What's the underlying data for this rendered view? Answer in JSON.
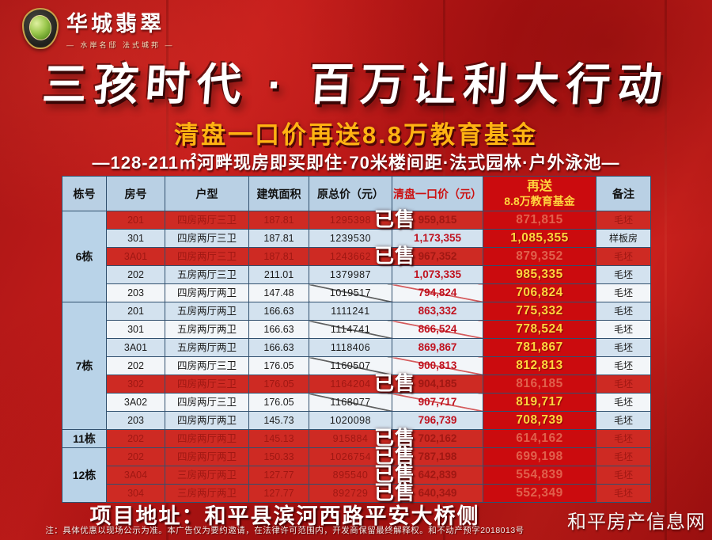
{
  "brand": {
    "name": "华城翡翠",
    "tagline": "— 水岸名邸  法式城邦 —"
  },
  "hero": {
    "title": "三孩时代 · 百万让利大行动",
    "subtitle": "清盘一口价再送8.8万教育基金",
    "features": "—128-211㎡河畔现房即买即住·70米楼间距·法式园林·户外泳池—"
  },
  "table": {
    "headers": [
      "栋号",
      "房号",
      "户型",
      "建筑面积",
      "原总价（元）",
      "清盘一口价（元）",
      "备注"
    ],
    "fund_header": {
      "line1": "再送",
      "line2": "8.8万教育基金"
    },
    "sold_label": "已售",
    "groups": [
      {
        "building": "6栋",
        "rows": [
          {
            "room": "201",
            "type": "四房两厅三卫",
            "area": "187.81",
            "original": "1295398",
            "clearance": "959,815",
            "fund": "871,815",
            "remark": "毛坯",
            "sold": true
          },
          {
            "room": "301",
            "type": "四房两厅三卫",
            "area": "187.81",
            "original": "1239530",
            "clearance": "1,173,355",
            "fund": "1,085,355",
            "remark": "样板房",
            "sold": false
          },
          {
            "room": "3A01",
            "type": "四房两厅三卫",
            "area": "187.81",
            "original": "1243662",
            "clearance": "967,352",
            "fund": "879,352",
            "remark": "毛坯",
            "sold": true
          },
          {
            "room": "202",
            "type": "五房两厅三卫",
            "area": "211.01",
            "original": "1379987",
            "clearance": "1,073,335",
            "fund": "985,335",
            "remark": "毛坯",
            "sold": false
          },
          {
            "room": "203",
            "type": "四房两厅两卫",
            "area": "147.48",
            "original": "1019517",
            "clearance": "794,824",
            "fund": "706,824",
            "remark": "毛坯",
            "sold": false
          }
        ]
      },
      {
        "building": "7栋",
        "rows": [
          {
            "room": "201",
            "type": "五房两厅两卫",
            "area": "166.63",
            "original": "1111241",
            "clearance": "863,332",
            "fund": "775,332",
            "remark": "毛坯",
            "sold": false
          },
          {
            "room": "301",
            "type": "五房两厅两卫",
            "area": "166.63",
            "original": "1114741",
            "clearance": "866,524",
            "fund": "778,524",
            "remark": "毛坯",
            "sold": false
          },
          {
            "room": "3A01",
            "type": "五房两厅两卫",
            "area": "166.63",
            "original": "1118406",
            "clearance": "869,867",
            "fund": "781,867",
            "remark": "毛坯",
            "sold": false
          },
          {
            "room": "202",
            "type": "四房两厅三卫",
            "area": "176.05",
            "original": "1160507",
            "clearance": "900,813",
            "fund": "812,813",
            "remark": "毛坯",
            "sold": false
          },
          {
            "room": "302",
            "type": "四房两厅三卫",
            "area": "176.05",
            "original": "1164204",
            "clearance": "904,185",
            "fund": "816,185",
            "remark": "毛坯",
            "sold": true
          },
          {
            "room": "3A02",
            "type": "四房两厅三卫",
            "area": "176.05",
            "original": "1168077",
            "clearance": "907,717",
            "fund": "819,717",
            "remark": "毛坯",
            "sold": false
          },
          {
            "room": "203",
            "type": "四房两厅两卫",
            "area": "145.73",
            "original": "1020098",
            "clearance": "796,739",
            "fund": "708,739",
            "remark": "毛坯",
            "sold": false
          }
        ]
      },
      {
        "building": "11栋",
        "rows": [
          {
            "room": "202",
            "type": "四房两厅两卫",
            "area": "145.13",
            "original": "915884",
            "clearance": "702,162",
            "fund": "614,162",
            "remark": "毛坯",
            "sold": true
          }
        ]
      },
      {
        "building": "12栋",
        "rows": [
          {
            "room": "202",
            "type": "四房两厅两卫",
            "area": "150.33",
            "original": "1026754",
            "clearance": "787,198",
            "fund": "699,198",
            "remark": "毛坯",
            "sold": true
          },
          {
            "room": "3A04",
            "type": "三房两厅两卫",
            "area": "127.77",
            "original": "895540",
            "clearance": "642,839",
            "fund": "554,839",
            "remark": "毛坯",
            "sold": true
          },
          {
            "room": "304",
            "type": "三房两厅两卫",
            "area": "127.77",
            "original": "892729",
            "clearance": "640,349",
            "fund": "552,349",
            "remark": "毛坯",
            "sold": true
          }
        ]
      }
    ]
  },
  "footer": {
    "address": "项目地址：和平县滨河西路平安大桥侧",
    "disclaimer": "注：具体优惠以现场公示为准。本广告仅为要约邀请，在法律许可范围内，开发商保留最终解释权。和不动产预字2018013号",
    "site": "和平房产信息网"
  },
  "colors": {
    "background_red": "#b51717",
    "fund_column_red": "#cb0b0e",
    "sold_row_red": "#ce2a23",
    "header_blue": "#b9d0e4",
    "row_blue": "#d3e2ef",
    "row_white": "#f3f6f9",
    "gold_value": "#ffd53e",
    "subtitle_orange": "#ffb312",
    "clearance_red": "#c0121f"
  }
}
